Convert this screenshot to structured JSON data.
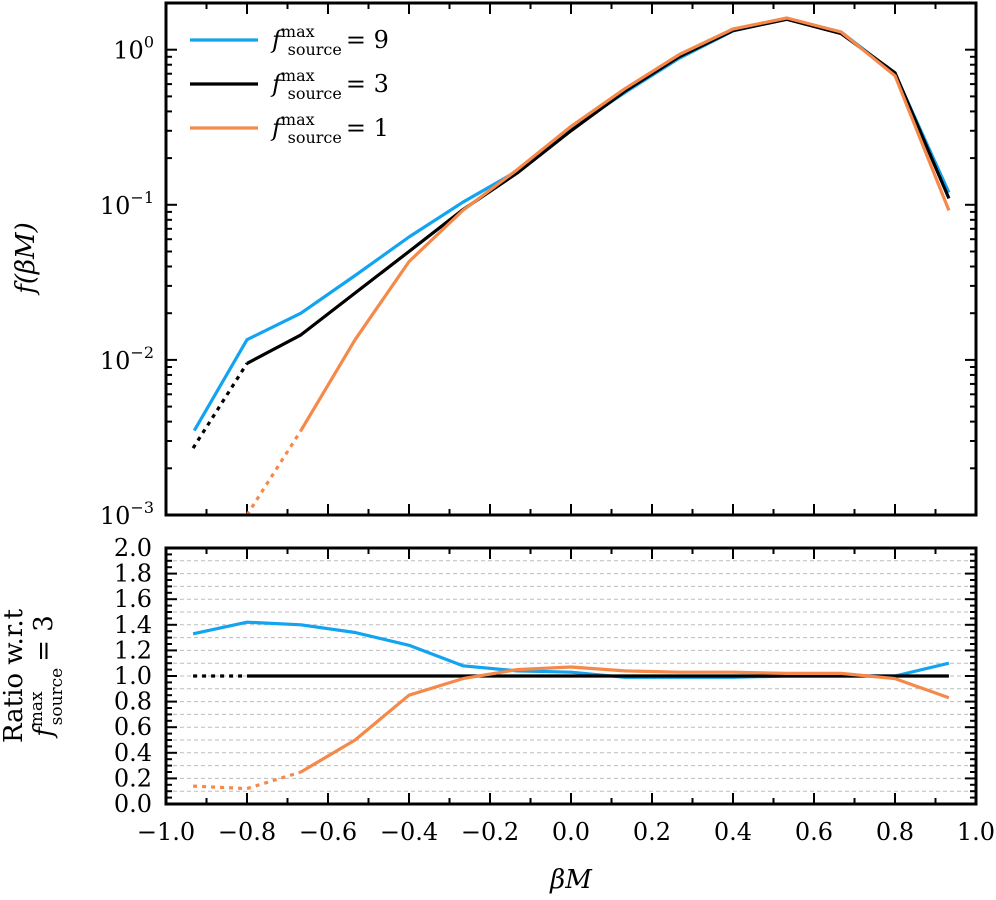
{
  "chart_data": {
    "top": {
      "type": "line",
      "ylabel": "f(βM)",
      "yscale": "log",
      "ylim": [
        0.001,
        2
      ],
      "xlim": [
        -1.0,
        1.0
      ],
      "yticks": [
        {
          "value": 1,
          "base": "10",
          "exp": "0"
        },
        {
          "value": 0.1,
          "base": "10",
          "exp": "−1"
        },
        {
          "value": 0.01,
          "base": "10",
          "exp": "−2"
        },
        {
          "value": 0.001,
          "base": "10",
          "exp": "−3"
        }
      ],
      "legend": {
        "placement": "top-left",
        "entries": [
          {
            "f": "f",
            "sup": "max",
            "sub": "source",
            "eq": "= 9"
          },
          {
            "f": "f",
            "sup": "max",
            "sub": "source",
            "eq": "= 3"
          },
          {
            "f": "f",
            "sup": "max",
            "sub": "source",
            "eq": "= 1"
          }
        ]
      },
      "series": [
        {
          "name": "f_source^max = 9",
          "color": "#12a4f0",
          "dotted": [
            [
              -0.93,
              0.0035
            ]
          ],
          "solid": [
            [
              -0.93,
              0.0035
            ],
            [
              -0.8,
              0.0135
            ],
            [
              -0.667,
              0.02
            ],
            [
              -0.533,
              0.035
            ],
            [
              -0.4,
              0.062
            ],
            [
              -0.267,
              0.104
            ],
            [
              -0.133,
              0.165
            ],
            [
              0.0,
              0.31
            ],
            [
              0.133,
              0.53
            ],
            [
              0.267,
              0.88
            ],
            [
              0.4,
              1.32
            ],
            [
              0.533,
              1.58
            ],
            [
              0.667,
              1.3
            ],
            [
              0.8,
              0.7
            ],
            [
              0.933,
              0.12
            ]
          ]
        },
        {
          "name": "f_source^max = 3",
          "color": "#000000",
          "dotted": [
            [
              -0.933,
              0.0027
            ],
            [
              -0.8,
              0.0095
            ]
          ],
          "solid": [
            [
              -0.8,
              0.0095
            ],
            [
              -0.667,
              0.0145
            ],
            [
              -0.533,
              0.027
            ],
            [
              -0.4,
              0.05
            ],
            [
              -0.267,
              0.093
            ],
            [
              -0.133,
              0.16
            ],
            [
              0.0,
              0.3
            ],
            [
              0.133,
              0.54
            ],
            [
              0.267,
              0.9
            ],
            [
              0.4,
              1.33
            ],
            [
              0.533,
              1.57
            ],
            [
              0.667,
              1.27
            ],
            [
              0.8,
              0.71
            ],
            [
              0.933,
              0.11
            ]
          ]
        },
        {
          "name": "f_source^max = 1",
          "color": "#f5894a",
          "dotted": [
            [
              -0.8,
              0.001
            ],
            [
              -0.667,
              0.0035
            ]
          ],
          "solid": [
            [
              -0.667,
              0.0035
            ],
            [
              -0.533,
              0.0135
            ],
            [
              -0.4,
              0.043
            ],
            [
              -0.267,
              0.092
            ],
            [
              -0.133,
              0.168
            ],
            [
              0.0,
              0.32
            ],
            [
              0.133,
              0.56
            ],
            [
              0.267,
              0.93
            ],
            [
              0.4,
              1.36
            ],
            [
              0.533,
              1.6
            ],
            [
              0.667,
              1.3
            ],
            [
              0.8,
              0.68
            ],
            [
              0.933,
              0.092
            ]
          ]
        }
      ]
    },
    "bottom": {
      "type": "line",
      "ylabel_line1": "Ratio w.r.t",
      "ylabel_line2": {
        "f": "f",
        "sup": "max",
        "sub": "source",
        "eq": "= 3"
      },
      "xlabel": "βM",
      "xlim": [
        -1.0,
        1.0
      ],
      "ylim": [
        0.0,
        2.0
      ],
      "grid": true,
      "grid_step": 0.1,
      "xticks": [
        "−1.0",
        "−0.8",
        "−0.6",
        "−0.4",
        "−0.2",
        "0.0",
        "0.2",
        "0.4",
        "0.6",
        "0.8",
        "1.0"
      ],
      "xtick_values": [
        -1.0,
        -0.8,
        -0.6,
        -0.4,
        -0.2,
        0.0,
        0.2,
        0.4,
        0.6,
        0.8,
        1.0
      ],
      "yticks": [
        "0.0",
        "0.2",
        "0.4",
        "0.6",
        "0.8",
        "1.0",
        "1.2",
        "1.4",
        "1.6",
        "1.8",
        "2.0"
      ],
      "ytick_values": [
        0.0,
        0.2,
        0.4,
        0.6,
        0.8,
        1.0,
        1.2,
        1.4,
        1.6,
        1.8,
        2.0
      ],
      "series": [
        {
          "name": "f_source^max = 9",
          "color": "#12a4f0",
          "dotted": [],
          "solid": [
            [
              -0.933,
              1.33
            ],
            [
              -0.8,
              1.42
            ],
            [
              -0.667,
              1.4
            ],
            [
              -0.533,
              1.34
            ],
            [
              -0.4,
              1.24
            ],
            [
              -0.267,
              1.08
            ],
            [
              -0.133,
              1.04
            ],
            [
              0.0,
              1.03
            ],
            [
              0.133,
              0.99
            ],
            [
              0.267,
              0.99
            ],
            [
              0.4,
              0.99
            ],
            [
              0.533,
              1.0
            ],
            [
              0.667,
              1.0
            ],
            [
              0.8,
              1.0
            ],
            [
              0.933,
              1.1
            ]
          ]
        },
        {
          "name": "f_source^max = 3",
          "color": "#000000",
          "dotted": [
            [
              -0.933,
              1.0
            ],
            [
              -0.8,
              1.0
            ]
          ],
          "solid": [
            [
              -0.8,
              1.0
            ],
            [
              0.933,
              1.0
            ]
          ]
        },
        {
          "name": "f_source^max = 1",
          "color": "#f5894a",
          "dotted": [
            [
              -0.933,
              0.14
            ],
            [
              -0.8,
              0.12
            ],
            [
              -0.667,
              0.25
            ]
          ],
          "solid": [
            [
              -0.667,
              0.25
            ],
            [
              -0.533,
              0.5
            ],
            [
              -0.4,
              0.85
            ],
            [
              -0.267,
              0.98
            ],
            [
              -0.133,
              1.05
            ],
            [
              0.0,
              1.07
            ],
            [
              0.133,
              1.04
            ],
            [
              0.267,
              1.03
            ],
            [
              0.4,
              1.03
            ],
            [
              0.533,
              1.02
            ],
            [
              0.667,
              1.02
            ],
            [
              0.8,
              0.98
            ],
            [
              0.933,
              0.83
            ]
          ]
        }
      ]
    }
  }
}
